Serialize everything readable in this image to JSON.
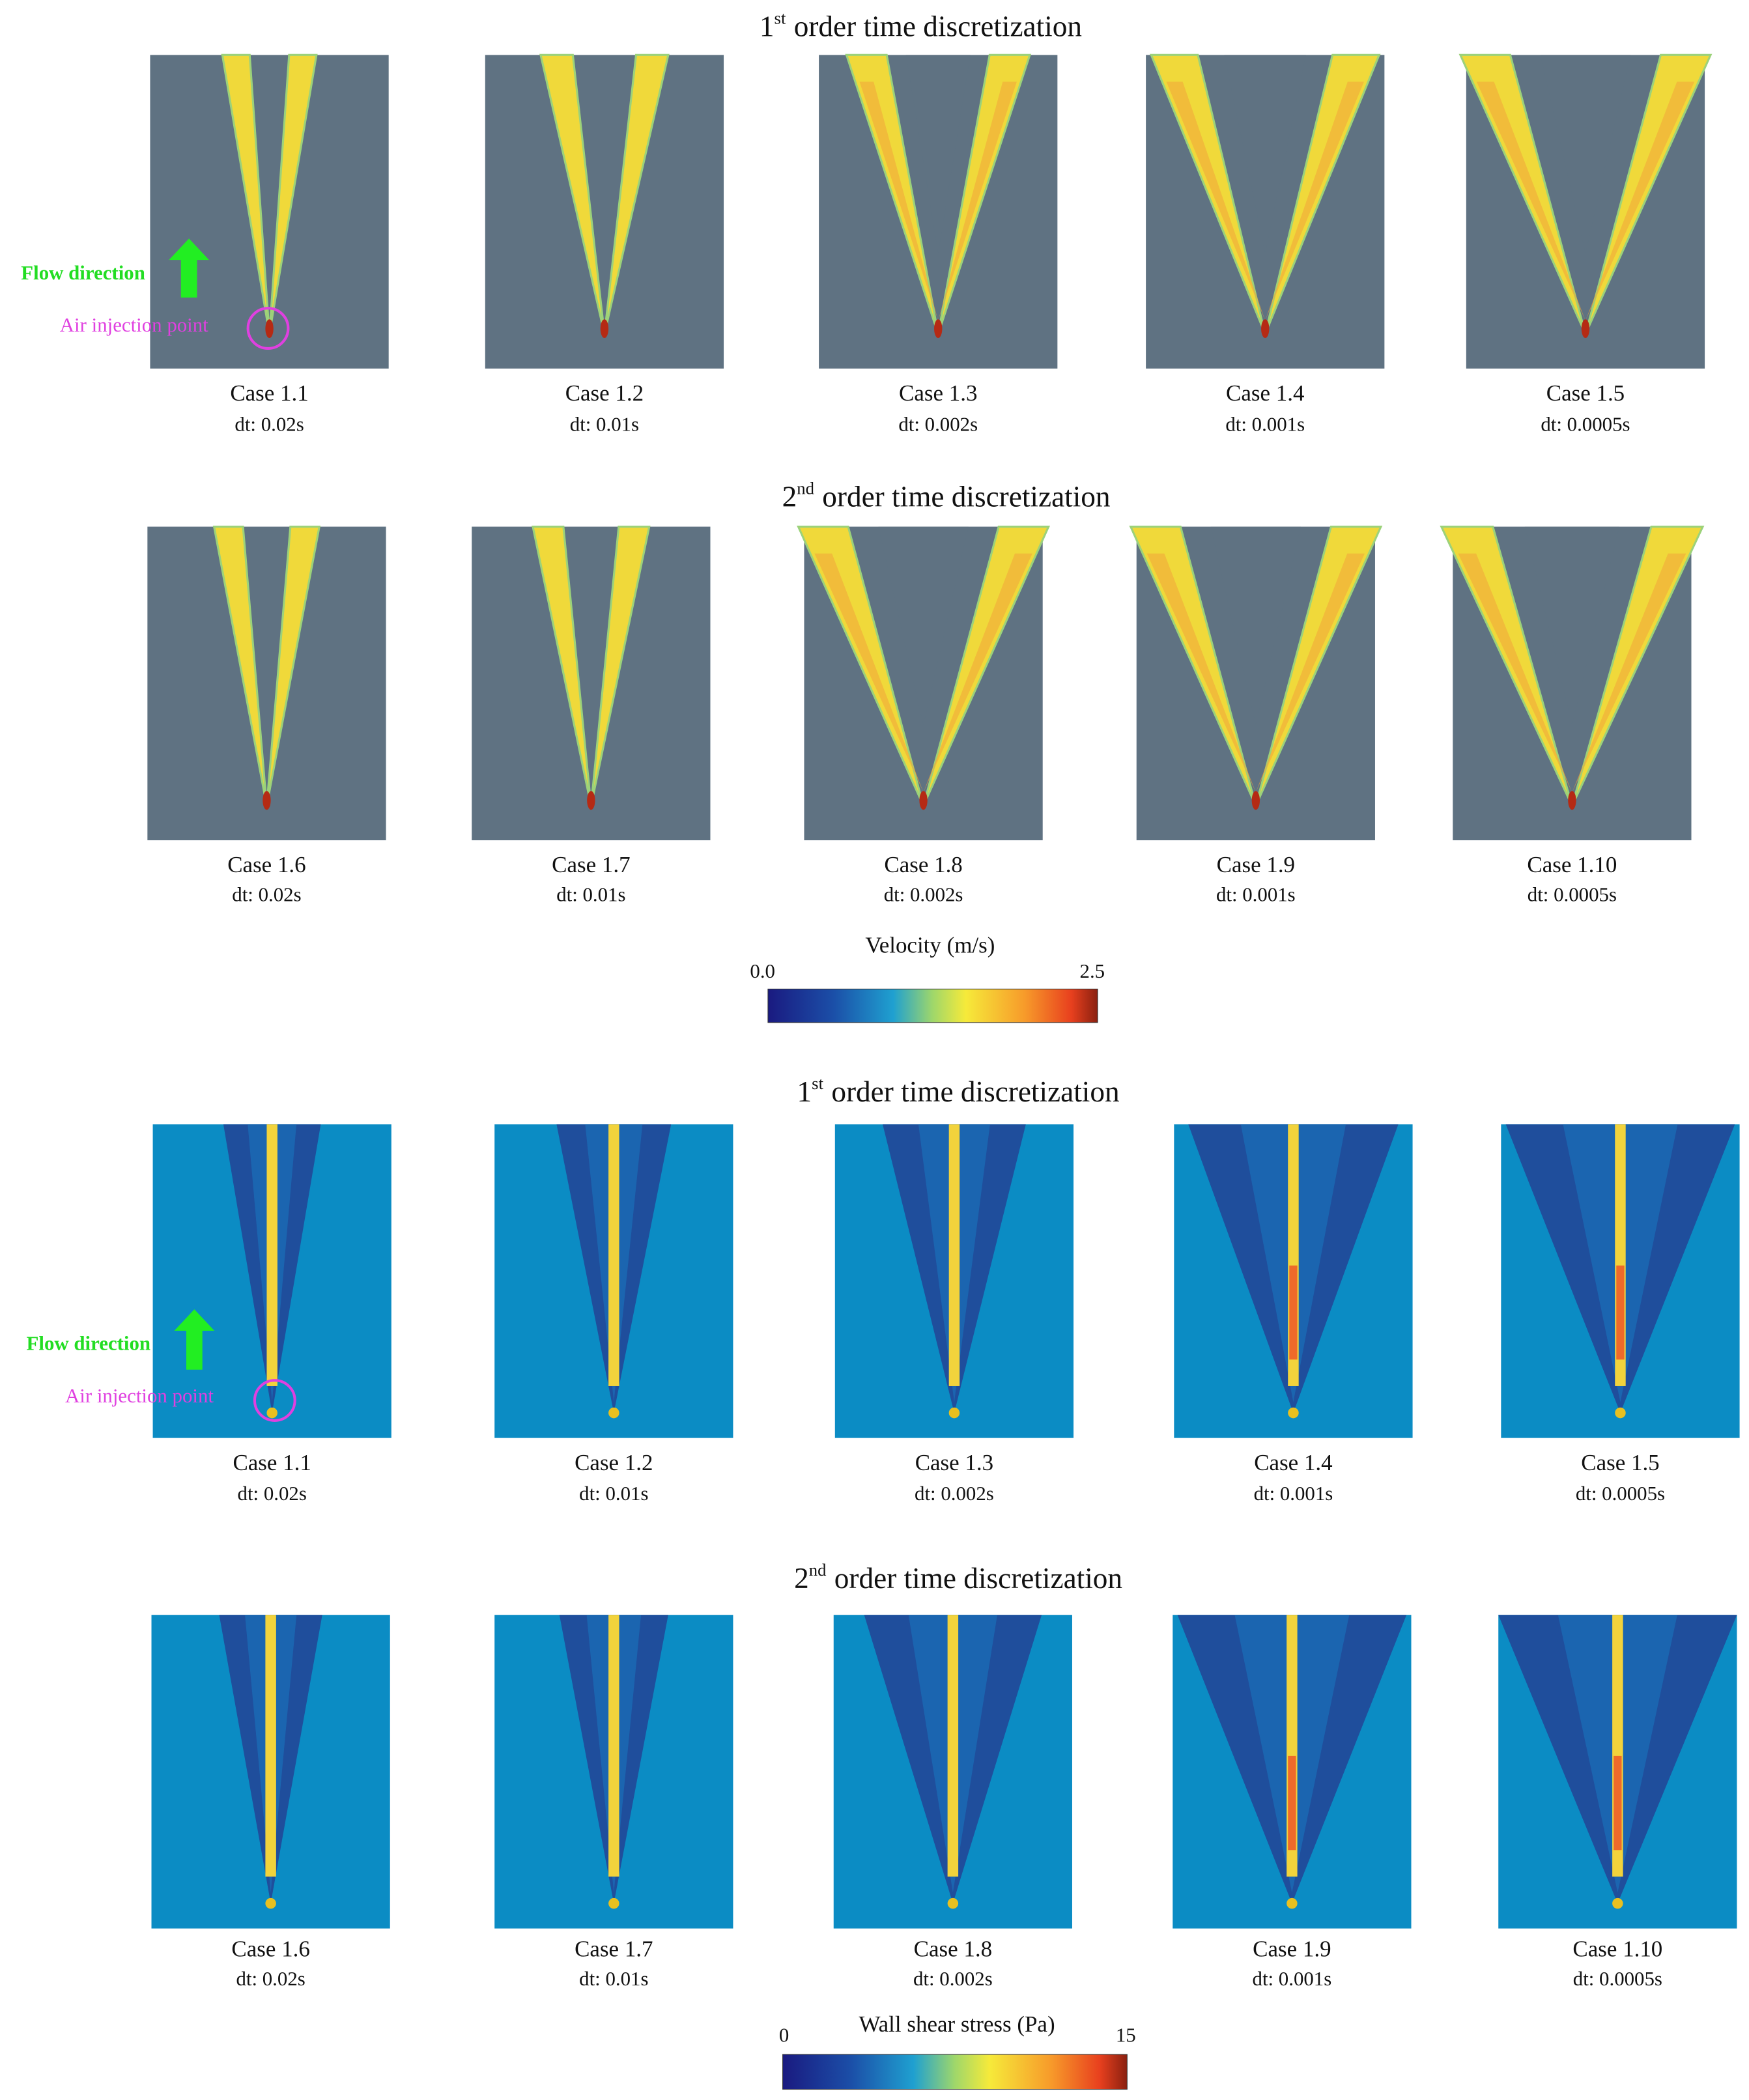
{
  "sections": [
    {
      "annotations": {
        "flow": "Flow direction",
        "injection": "Air injection point"
      },
      "rows": [
        {
          "title": {
            "number": "1",
            "suffix": "st",
            "text": "order time discretization"
          },
          "panels": [
            {
              "case": "Case 1.1",
              "dt": "dt: 0.02s"
            },
            {
              "case": "Case 1.2",
              "dt": "dt: 0.01s"
            },
            {
              "case": "Case 1.3",
              "dt": "dt: 0.002s"
            },
            {
              "case": "Case 1.4",
              "dt": "dt: 0.001s"
            },
            {
              "case": "Case 1.5",
              "dt": "dt: 0.0005s"
            }
          ]
        },
        {
          "title": {
            "number": "2",
            "suffix": "nd",
            "text": "order time discretization"
          },
          "panels": [
            {
              "case": "Case 1.6",
              "dt": "dt: 0.02s"
            },
            {
              "case": "Case 1.7",
              "dt": "dt: 0.01s"
            },
            {
              "case": "Case 1.8",
              "dt": "dt: 0.002s"
            },
            {
              "case": "Case 1.9",
              "dt": "dt: 0.001s"
            },
            {
              "case": "Case 1.10",
              "dt": "dt: 0.0005s"
            }
          ]
        }
      ],
      "colorbar": {
        "label": "Velocity (m/s)",
        "min": "0.0",
        "max": "2.5"
      }
    },
    {
      "annotations": {
        "flow": "Flow direction",
        "injection": "Air injection point"
      },
      "rows": [
        {
          "title": {
            "number": "1",
            "suffix": "st",
            "text": "order time discretization"
          },
          "panels": [
            {
              "case": "Case 1.1",
              "dt": "dt: 0.02s"
            },
            {
              "case": "Case 1.2",
              "dt": "dt: 0.01s"
            },
            {
              "case": "Case 1.3",
              "dt": "dt: 0.002s"
            },
            {
              "case": "Case 1.4",
              "dt": "dt: 0.001s"
            },
            {
              "case": "Case 1.5",
              "dt": "dt: 0.0005s"
            }
          ]
        },
        {
          "title": {
            "number": "2",
            "suffix": "nd",
            "text": "order time discretization"
          },
          "panels": [
            {
              "case": "Case 1.6",
              "dt": "dt: 0.02s"
            },
            {
              "case": "Case 1.7",
              "dt": "dt: 0.01s"
            },
            {
              "case": "Case 1.8",
              "dt": "dt: 0.002s"
            },
            {
              "case": "Case 1.9",
              "dt": "dt: 0.001s"
            },
            {
              "case": "Case 1.10",
              "dt": "dt: 0.0005s"
            }
          ]
        }
      ],
      "colorbar": {
        "label": "Wall shear stress (Pa)",
        "min": "0",
        "max": "15"
      }
    }
  ]
}
